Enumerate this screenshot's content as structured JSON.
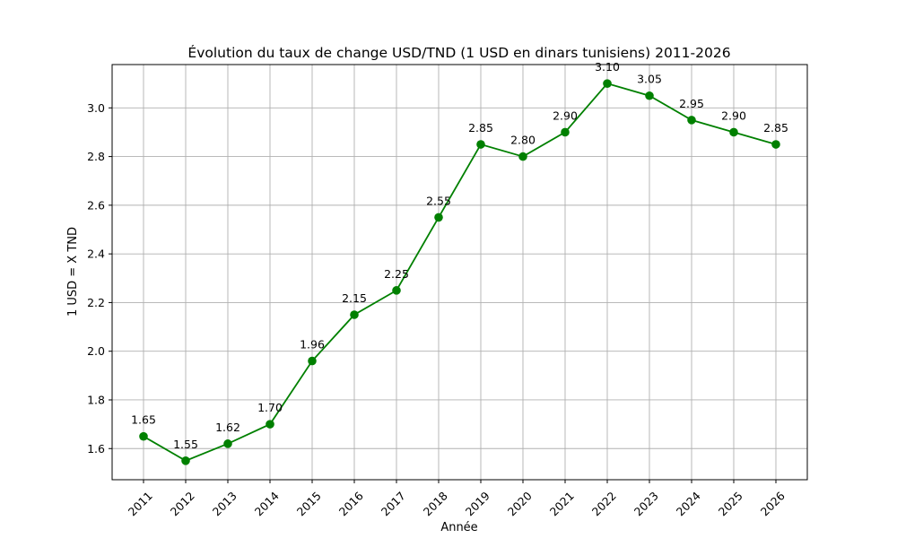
{
  "chart_data": {
    "type": "line",
    "title": "Évolution du taux de change USD/TND (1 USD en dinars tunisiens) 2011-2026",
    "xlabel": "Année",
    "ylabel": "1 USD = X TND",
    "categories": [
      "2011",
      "2012",
      "2013",
      "2014",
      "2015",
      "2016",
      "2017",
      "2018",
      "2019",
      "2020",
      "2021",
      "2022",
      "2023",
      "2024",
      "2025",
      "2026"
    ],
    "series": [
      {
        "values": [
          1.65,
          1.55,
          1.62,
          1.7,
          1.96,
          2.15,
          2.25,
          2.55,
          2.85,
          2.8,
          2.9,
          3.1,
          3.05,
          2.95,
          2.9,
          2.85
        ],
        "data_labels": [
          "1.65",
          "1.55",
          "1.62",
          "1.70",
          "1.96",
          "2.15",
          "2.25",
          "2.55",
          "2.85",
          "2.80",
          "2.90",
          "3.10",
          "3.05",
          "2.95",
          "2.90",
          "2.85"
        ],
        "color": "#008000"
      }
    ],
    "ylim": [
      1.472,
      3.178
    ],
    "yticks": [
      1.6,
      1.8,
      2.0,
      2.2,
      2.4,
      2.6,
      2.8,
      3.0
    ],
    "ytick_labels": [
      "1.6",
      "1.8",
      "2.0",
      "2.2",
      "2.4",
      "2.6",
      "2.8",
      "3.0"
    ],
    "grid": true,
    "xtick_rotation": 45
  }
}
